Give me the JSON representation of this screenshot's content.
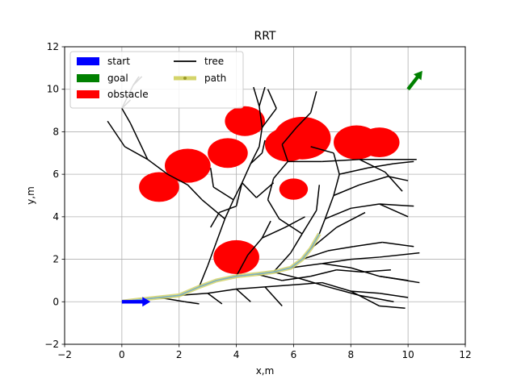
{
  "chart_data": {
    "type": "scatter",
    "title": "RRT",
    "xlabel": "x,m",
    "ylabel": "y,m",
    "xlim": [
      -2,
      12
    ],
    "ylim": [
      -2,
      12
    ],
    "xticks": [
      "-2",
      "0",
      "2",
      "4",
      "6",
      "8",
      "10",
      "12"
    ],
    "yticks": [
      "-2",
      "0",
      "2",
      "4",
      "6",
      "8",
      "10",
      "12"
    ],
    "grid": true,
    "legend": {
      "placement": "top-left",
      "entries": [
        {
          "label": "start",
          "color": "#0000ff",
          "style": "patch"
        },
        {
          "label": "tree",
          "color": "#000000",
          "style": "line"
        },
        {
          "label": "goal",
          "color": "#008000",
          "style": "patch"
        },
        {
          "label": "path",
          "color": "#d4d46a",
          "style": "path"
        },
        {
          "label": "obstacle",
          "color": "#ff0000",
          "style": "patch"
        }
      ]
    },
    "start": {
      "x": 0,
      "y": 0,
      "heading_deg": 0
    },
    "goal": {
      "x": 10,
      "y": 10,
      "heading_deg": 60
    },
    "obstacles": [
      {
        "x": 1.3,
        "y": 5.4,
        "r": 0.7
      },
      {
        "x": 2.3,
        "y": 6.4,
        "r": 0.8
      },
      {
        "x": 3.7,
        "y": 7.0,
        "r": 0.7
      },
      {
        "x": 4.3,
        "y": 8.5,
        "r": 0.7
      },
      {
        "x": 5.8,
        "y": 7.4,
        "r": 0.8
      },
      {
        "x": 6.3,
        "y": 7.7,
        "r": 1.0
      },
      {
        "x": 6.0,
        "y": 5.3,
        "r": 0.5
      },
      {
        "x": 8.2,
        "y": 7.5,
        "r": 0.8
      },
      {
        "x": 9.0,
        "y": 7.5,
        "r": 0.7
      },
      {
        "x": 4.0,
        "y": 2.1,
        "r": 0.8
      }
    ],
    "tree_edges": [
      [
        0,
        0,
        0.6,
        0.1
      ],
      [
        0.6,
        0.1,
        1.3,
        0.2
      ],
      [
        1.3,
        0.2,
        2.0,
        0.3
      ],
      [
        2.0,
        0.3,
        2.7,
        0.7
      ],
      [
        2.7,
        0.7,
        3.3,
        1.0
      ],
      [
        3.3,
        1.0,
        4.0,
        1.2
      ],
      [
        4.0,
        1.2,
        4.7,
        1.3
      ],
      [
        4.7,
        1.3,
        5.3,
        1.4
      ],
      [
        5.3,
        1.4,
        5.9,
        1.6
      ],
      [
        5.9,
        1.6,
        6.3,
        2.0
      ],
      [
        6.3,
        2.0,
        6.6,
        2.5
      ],
      [
        6.6,
        2.5,
        6.9,
        3.2
      ],
      [
        6.9,
        3.2,
        7.1,
        3.9
      ],
      [
        7.1,
        3.9,
        7.4,
        5.0
      ],
      [
        7.4,
        5.0,
        7.6,
        6.0
      ],
      [
        7.6,
        6.0,
        7.4,
        7.0
      ],
      [
        6.3,
        2.0,
        7.2,
        2.4
      ],
      [
        7.2,
        2.4,
        8.1,
        2.6
      ],
      [
        8.1,
        2.6,
        9.1,
        2.8
      ],
      [
        9.1,
        2.8,
        10.2,
        2.6
      ],
      [
        7.1,
        3.9,
        8.0,
        4.4
      ],
      [
        8.0,
        4.4,
        9.0,
        4.6
      ],
      [
        9.0,
        4.6,
        10.0,
        4.0
      ],
      [
        9.0,
        4.6,
        10.2,
        4.5
      ],
      [
        7.4,
        5.0,
        8.3,
        5.5
      ],
      [
        8.3,
        5.5,
        9.3,
        5.9
      ],
      [
        9.3,
        5.9,
        10.0,
        5.7
      ],
      [
        7.6,
        6.0,
        8.6,
        6.3
      ],
      [
        8.6,
        6.3,
        9.5,
        6.5
      ],
      [
        9.5,
        6.5,
        10.2,
        6.6
      ],
      [
        7.4,
        7.0,
        6.6,
        7.3
      ],
      [
        5.3,
        1.4,
        5.9,
        2.3
      ],
      [
        5.9,
        2.3,
        6.3,
        3.2
      ],
      [
        6.3,
        3.2,
        6.8,
        4.3
      ],
      [
        6.8,
        4.3,
        6.9,
        5.5
      ],
      [
        6.3,
        3.2,
        5.5,
        3.9
      ],
      [
        5.5,
        3.9,
        5.1,
        4.8
      ],
      [
        5.1,
        4.8,
        5.3,
        5.8
      ],
      [
        5.3,
        5.8,
        5.8,
        6.6
      ],
      [
        5.8,
        6.6,
        7.0,
        6.6
      ],
      [
        7.0,
        6.6,
        8.3,
        6.7
      ],
      [
        8.3,
        6.7,
        9.5,
        6.7
      ],
      [
        9.5,
        6.7,
        10.3,
        6.7
      ],
      [
        8.3,
        6.7,
        9.2,
        6.1
      ],
      [
        9.2,
        6.1,
        9.8,
        5.2
      ],
      [
        4.0,
        1.2,
        4.4,
        2.2
      ],
      [
        4.4,
        2.2,
        4.9,
        3.0
      ],
      [
        4.9,
        3.0,
        5.7,
        3.5
      ],
      [
        5.7,
        3.5,
        6.4,
        4.0
      ],
      [
        4.9,
        3.0,
        5.2,
        3.8
      ],
      [
        2.7,
        0.7,
        3.0,
        1.7
      ],
      [
        3.0,
        1.7,
        3.3,
        2.8
      ],
      [
        3.3,
        2.8,
        3.6,
        3.9
      ],
      [
        3.6,
        3.9,
        3.9,
        4.8
      ],
      [
        3.9,
        4.8,
        4.2,
        5.6
      ],
      [
        4.2,
        5.6,
        4.5,
        6.5
      ],
      [
        4.5,
        6.5,
        4.8,
        7.3
      ],
      [
        4.8,
        7.3,
        4.9,
        8.2
      ],
      [
        4.9,
        8.2,
        4.8,
        9.2
      ],
      [
        4.8,
        9.2,
        4.6,
        10.1
      ],
      [
        4.8,
        9.2,
        5.0,
        10.1
      ],
      [
        4.9,
        8.2,
        5.4,
        9.1
      ],
      [
        5.4,
        9.1,
        5.1,
        10.0
      ],
      [
        4.5,
        6.5,
        4.9,
        7.0
      ],
      [
        4.9,
        7.0,
        5.0,
        7.6
      ],
      [
        3.6,
        3.9,
        2.8,
        4.8
      ],
      [
        2.8,
        4.8,
        2.3,
        5.5
      ],
      [
        2.3,
        5.5,
        1.6,
        6.0
      ],
      [
        1.6,
        6.0,
        0.9,
        6.7
      ],
      [
        0.9,
        6.7,
        0.1,
        7.3
      ],
      [
        0.1,
        7.3,
        -0.5,
        8.5
      ],
      [
        0.9,
        6.7,
        0.3,
        8.4
      ],
      [
        0.3,
        8.4,
        0.0,
        9.1
      ],
      [
        0.0,
        9.1,
        0.4,
        10.2
      ],
      [
        0.4,
        10.2,
        0.7,
        10.6
      ],
      [
        3.9,
        4.8,
        3.2,
        5.4
      ],
      [
        3.2,
        5.4,
        3.1,
        6.3
      ],
      [
        4.2,
        5.6,
        4.0,
        4.5
      ],
      [
        4.0,
        4.5,
        3.4,
        4.2
      ],
      [
        3.4,
        4.2,
        3.1,
        3.5
      ],
      [
        5.9,
        1.6,
        7.0,
        1.8
      ],
      [
        7.0,
        1.8,
        8.0,
        2.0
      ],
      [
        8.0,
        2.0,
        9.0,
        2.1
      ],
      [
        9.0,
        2.1,
        10.4,
        2.3
      ],
      [
        7.0,
        1.8,
        8.0,
        1.6
      ],
      [
        8.0,
        1.6,
        9.0,
        1.2
      ],
      [
        9.0,
        1.2,
        10.4,
        0.9
      ],
      [
        9.0,
        1.2,
        10.0,
        1.0
      ],
      [
        6.6,
        2.5,
        7.5,
        3.5
      ],
      [
        7.5,
        3.5,
        8.5,
        4.2
      ],
      [
        2.0,
        0.3,
        3.0,
        0.4
      ],
      [
        3.0,
        0.4,
        4.0,
        0.6
      ],
      [
        4.0,
        0.6,
        5.0,
        0.7
      ],
      [
        5.0,
        0.7,
        6.0,
        0.8
      ],
      [
        6.0,
        0.8,
        7.0,
        0.9
      ],
      [
        7.0,
        0.9,
        8.0,
        0.5
      ],
      [
        8.0,
        0.5,
        9.0,
        0.4
      ],
      [
        9.0,
        0.4,
        10.0,
        0.2
      ],
      [
        8.0,
        0.5,
        9.0,
        -0.2
      ],
      [
        9.0,
        -0.2,
        9.9,
        -0.3
      ],
      [
        5.0,
        0.7,
        5.6,
        -0.2
      ],
      [
        4.0,
        0.6,
        4.5,
        0.0
      ],
      [
        3.0,
        0.4,
        3.5,
        -0.1
      ],
      [
        1.3,
        0.2,
        2.2,
        0.0
      ],
      [
        2.2,
        0.0,
        2.7,
        -0.1
      ],
      [
        4.7,
        1.3,
        5.6,
        1.0
      ],
      [
        5.6,
        1.0,
        6.6,
        1.2
      ],
      [
        6.6,
        1.2,
        7.5,
        1.5
      ],
      [
        7.5,
        1.5,
        8.4,
        1.4
      ],
      [
        8.4,
        1.4,
        9.4,
        1.5
      ],
      [
        5.3,
        1.4,
        6.2,
        1.1
      ],
      [
        6.2,
        1.1,
        7.2,
        0.7
      ],
      [
        7.2,
        0.7,
        8.3,
        0.3
      ],
      [
        8.3,
        0.3,
        9.5,
        0.0
      ],
      [
        4.2,
        5.6,
        4.7,
        4.9
      ],
      [
        4.7,
        4.9,
        5.3,
        5.6
      ],
      [
        5.8,
        6.6,
        5.6,
        7.4
      ],
      [
        5.6,
        7.4,
        6.1,
        8.2
      ],
      [
        6.1,
        8.2,
        6.6,
        8.9
      ],
      [
        6.6,
        8.9,
        6.8,
        9.9
      ],
      [
        0.4,
        10.2,
        0.6,
        10.6
      ],
      [
        0.0,
        9.1,
        0.3,
        9.5
      ]
    ],
    "path": [
      [
        0,
        0
      ],
      [
        0.6,
        0.1
      ],
      [
        1.3,
        0.2
      ],
      [
        2.0,
        0.3
      ],
      [
        2.7,
        0.7
      ],
      [
        3.3,
        1.0
      ],
      [
        4.0,
        1.2
      ],
      [
        4.7,
        1.3
      ],
      [
        5.3,
        1.4
      ],
      [
        5.9,
        1.6
      ],
      [
        6.3,
        2.0
      ],
      [
        6.6,
        2.5
      ],
      [
        6.9,
        3.2
      ]
    ]
  }
}
